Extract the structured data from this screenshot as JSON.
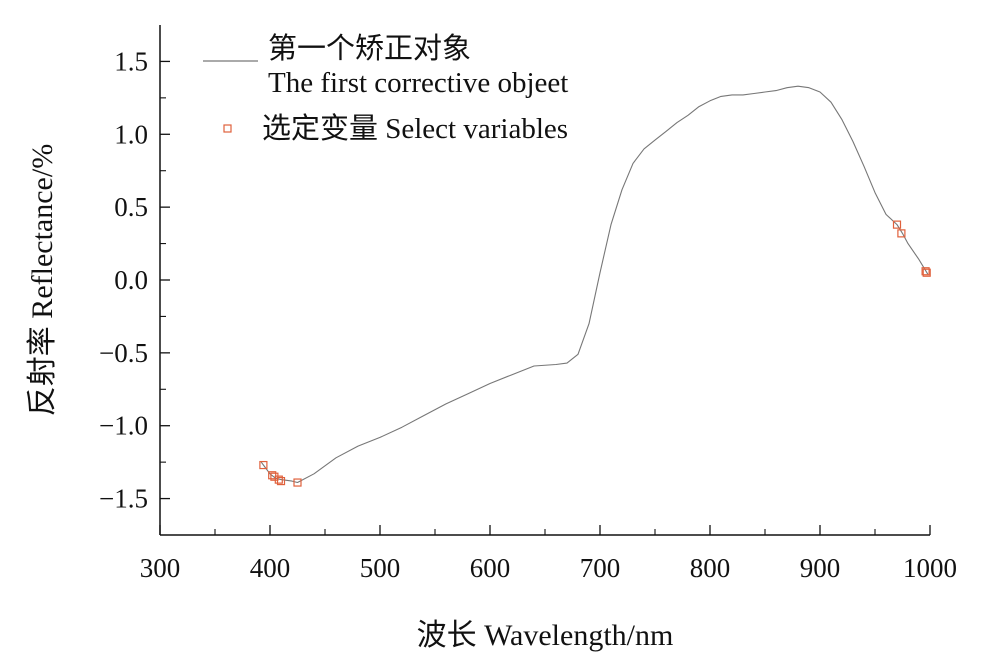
{
  "chart_data": {
    "type": "line",
    "xlabel": "波长 Wavelength/nm",
    "ylabel": "反射率 Reflectance/%",
    "xlim": [
      300,
      1000
    ],
    "ylim": [
      -1.75,
      1.75
    ],
    "x_ticks": [
      300,
      400,
      500,
      600,
      700,
      800,
      900,
      1000
    ],
    "x_tick_labels": [
      "300",
      "400",
      "500",
      "600",
      "700",
      "800",
      "900",
      "1000"
    ],
    "x_minor_ticks": [
      350,
      450,
      550,
      650,
      750,
      850,
      950
    ],
    "y_ticks": [
      1.5,
      1.0,
      0.5,
      0.0,
      -0.5,
      -1.0,
      -1.5
    ],
    "y_tick_labels": [
      "1.5",
      "1.0",
      "0.5",
      "0.0",
      "−0.5",
      "−1.0",
      "−1.5"
    ],
    "y_minor_ticks": [
      1.25,
      0.75,
      0.25,
      -0.25,
      -0.75,
      -1.25
    ],
    "grid": false,
    "legend_position": "top-left",
    "colors": {
      "line": "#777777",
      "marker": "#e0613c",
      "axis": "#111111"
    },
    "legend": {
      "line_label_1": "第一个矫正对象",
      "line_label_2": "The first corrective objeet",
      "marker_label": "选定变量 Select variables"
    },
    "series": [
      {
        "style": "line",
        "x": [
          392,
          395,
          400,
          405,
          410,
          420,
          425,
          440,
          460,
          480,
          500,
          520,
          540,
          560,
          580,
          600,
          620,
          640,
          660,
          670,
          680,
          690,
          700,
          710,
          720,
          730,
          740,
          750,
          760,
          770,
          780,
          790,
          800,
          810,
          820,
          830,
          840,
          850,
          860,
          870,
          880,
          890,
          900,
          910,
          920,
          930,
          940,
          950,
          960,
          970,
          975,
          980,
          990,
          998
        ],
        "y": [
          -1.25,
          -1.28,
          -1.33,
          -1.36,
          -1.37,
          -1.38,
          -1.39,
          -1.33,
          -1.22,
          -1.14,
          -1.08,
          -1.01,
          -0.93,
          -0.85,
          -0.78,
          -0.71,
          -0.65,
          -0.59,
          -0.58,
          -0.57,
          -0.51,
          -0.3,
          0.05,
          0.38,
          0.62,
          0.8,
          0.9,
          0.96,
          1.02,
          1.08,
          1.13,
          1.19,
          1.23,
          1.26,
          1.27,
          1.27,
          1.28,
          1.29,
          1.3,
          1.32,
          1.33,
          1.32,
          1.29,
          1.22,
          1.1,
          0.95,
          0.78,
          0.6,
          0.45,
          0.38,
          0.32,
          0.25,
          0.14,
          0.04
        ]
      },
      {
        "style": "marker",
        "x": [
          394,
          402,
          404,
          408,
          410,
          425,
          970,
          974,
          996,
          997
        ],
        "y": [
          -1.27,
          -1.34,
          -1.35,
          -1.37,
          -1.38,
          -1.39,
          0.38,
          0.32,
          0.06,
          0.05
        ]
      }
    ]
  }
}
